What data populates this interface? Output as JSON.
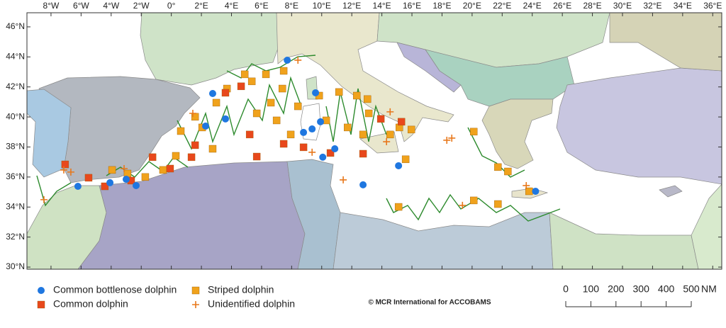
{
  "map": {
    "lon_range": [
      -9.6,
      36.6
    ],
    "lat_range": [
      29.86,
      46.94
    ],
    "lon_ticks": [
      {
        "value": -8,
        "label": "8°W"
      },
      {
        "value": -6,
        "label": "6°W"
      },
      {
        "value": -4,
        "label": "4°W"
      },
      {
        "value": -2,
        "label": "2°W"
      },
      {
        "value": 0,
        "label": "0°"
      },
      {
        "value": 2,
        "label": "2°E"
      },
      {
        "value": 4,
        "label": "4°E"
      },
      {
        "value": 6,
        "label": "6°E"
      },
      {
        "value": 8,
        "label": "8°E"
      },
      {
        "value": 10,
        "label": "10°E"
      },
      {
        "value": 12,
        "label": "12°E"
      },
      {
        "value": 14,
        "label": "14°E"
      },
      {
        "value": 16,
        "label": "16°E"
      },
      {
        "value": 18,
        "label": "18°E"
      },
      {
        "value": 20,
        "label": "20°E"
      },
      {
        "value": 22,
        "label": "22°E"
      },
      {
        "value": 24,
        "label": "24°E"
      },
      {
        "value": 26,
        "label": "26°E"
      },
      {
        "value": 28,
        "label": "28°E"
      },
      {
        "value": 30,
        "label": "30°E"
      },
      {
        "value": 32,
        "label": "32°E"
      },
      {
        "value": 34,
        "label": "34°E"
      },
      {
        "value": 36,
        "label": "36°E"
      }
    ],
    "lat_ticks": [
      {
        "value": 46,
        "label": "46°N"
      },
      {
        "value": 44,
        "label": "44°N"
      },
      {
        "value": 42,
        "label": "42°N"
      },
      {
        "value": 40,
        "label": "40°N"
      },
      {
        "value": 38,
        "label": "38°N"
      },
      {
        "value": 36,
        "label": "36°N"
      },
      {
        "value": 34,
        "label": "34°N"
      },
      {
        "value": 32,
        "label": "32°N"
      },
      {
        "value": 30,
        "label": "30°N"
      }
    ],
    "species": [
      {
        "name": "Common bottlenose dolphin",
        "color": "#1f77e0",
        "marker": "circle",
        "points": [
          [
            -6.21,
            35.38
          ],
          [
            -4.08,
            35.62
          ],
          [
            -3.0,
            35.85
          ],
          [
            -2.34,
            35.43
          ],
          [
            2.75,
            41.56
          ],
          [
            3.6,
            39.87
          ],
          [
            2.28,
            39.39
          ],
          [
            7.71,
            43.78
          ],
          [
            9.59,
            41.61
          ],
          [
            8.79,
            38.97
          ],
          [
            9.36,
            39.2
          ],
          [
            9.92,
            39.68
          ],
          [
            10.07,
            37.32
          ],
          [
            10.87,
            37.88
          ],
          [
            12.75,
            35.48
          ],
          [
            15.11,
            36.75
          ],
          [
            24.22,
            35.05
          ]
        ]
      },
      {
        "name": "Common dolphin",
        "color": "#e8481c",
        "marker": "square",
        "points": [
          [
            -7.06,
            36.84
          ],
          [
            -5.5,
            35.95
          ],
          [
            -4.42,
            35.38
          ],
          [
            -2.67,
            35.76
          ],
          [
            -1.25,
            37.32
          ],
          [
            -0.08,
            36.56
          ],
          [
            1.58,
            38.12
          ],
          [
            1.34,
            37.32
          ],
          [
            3.6,
            41.61
          ],
          [
            4.64,
            42.04
          ],
          [
            5.21,
            38.83
          ],
          [
            5.68,
            37.36
          ],
          [
            7.47,
            38.21
          ],
          [
            8.79,
            37.98
          ],
          [
            10.58,
            37.6
          ],
          [
            12.75,
            37.55
          ],
          [
            13.93,
            39.87
          ],
          [
            15.3,
            39.68
          ]
        ]
      },
      {
        "name": "Striped dolphin",
        "color": "#f0a21c",
        "marker": "square",
        "points": [
          [
            -3.94,
            36.47
          ],
          [
            -2.91,
            36.23
          ],
          [
            -1.73,
            36.0
          ],
          [
            -0.55,
            36.47
          ],
          [
            0.3,
            37.41
          ],
          [
            0.63,
            39.06
          ],
          [
            1.58,
            40.01
          ],
          [
            2.05,
            39.3
          ],
          [
            2.75,
            37.88
          ],
          [
            2.99,
            40.95
          ],
          [
            3.7,
            41.89
          ],
          [
            4.88,
            42.84
          ],
          [
            5.35,
            42.37
          ],
          [
            5.68,
            40.24
          ],
          [
            6.29,
            42.84
          ],
          [
            6.62,
            40.95
          ],
          [
            7.0,
            39.77
          ],
          [
            7.38,
            41.89
          ],
          [
            7.47,
            43.07
          ],
          [
            7.94,
            38.83
          ],
          [
            8.42,
            40.71
          ],
          [
            9.83,
            41.42
          ],
          [
            10.3,
            39.77
          ],
          [
            11.15,
            41.66
          ],
          [
            11.72,
            39.3
          ],
          [
            12.33,
            41.42
          ],
          [
            12.75,
            38.83
          ],
          [
            13.13,
            40.24
          ],
          [
            13.04,
            41.19
          ],
          [
            14.55,
            38.83
          ],
          [
            15.16,
            39.3
          ],
          [
            15.96,
            39.16
          ],
          [
            15.58,
            37.18
          ],
          [
            20.11,
            39.02
          ],
          [
            20.11,
            34.44
          ],
          [
            21.72,
            34.2
          ],
          [
            21.72,
            36.66
          ],
          [
            22.38,
            36.37
          ],
          [
            23.79,
            35.05
          ],
          [
            15.11,
            34.01
          ]
        ]
      },
      {
        "name": "Unidentified dolphin",
        "color": "#e8781c",
        "marker": "plus",
        "points": [
          [
            -8.47,
            34.49
          ],
          [
            -7.15,
            36.47
          ],
          [
            -6.68,
            36.33
          ],
          [
            -3.14,
            36.56
          ],
          [
            1.43,
            40.24
          ],
          [
            8.42,
            43.78
          ],
          [
            9.36,
            37.65
          ],
          [
            11.43,
            35.81
          ],
          [
            18.32,
            38.45
          ],
          [
            18.65,
            38.59
          ],
          [
            19.36,
            34.11
          ],
          [
            14.55,
            40.34
          ],
          [
            14.31,
            38.35
          ],
          [
            23.6,
            35.43
          ]
        ]
      }
    ],
    "credit": "© MCR International for ACCOBAMS",
    "scale_bar": {
      "ticks": [
        0,
        100,
        200,
        300,
        400,
        500
      ],
      "unit": "NM"
    }
  }
}
